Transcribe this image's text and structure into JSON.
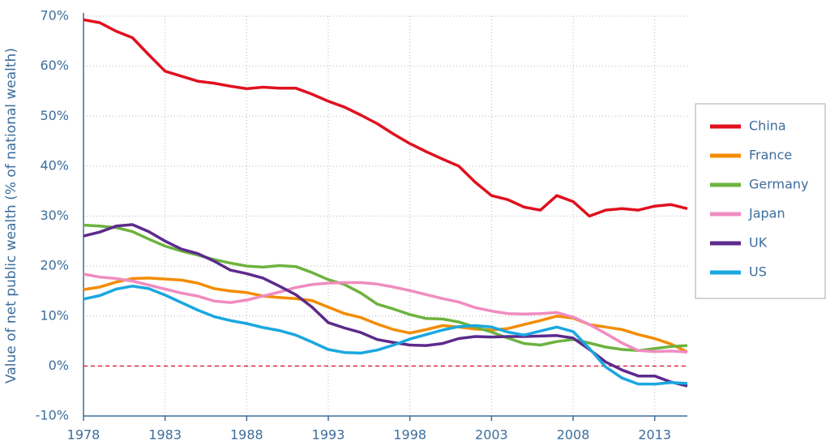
{
  "chart_data": {
    "type": "line",
    "y_label": "Value of net public wealth (% of national wealth)",
    "x": [
      1978,
      1979,
      1980,
      1981,
      1982,
      1983,
      1984,
      1985,
      1986,
      1987,
      1988,
      1989,
      1990,
      1991,
      1992,
      1993,
      1994,
      1995,
      1996,
      1997,
      1998,
      1999,
      2000,
      2001,
      2002,
      2003,
      2004,
      2005,
      2006,
      2007,
      2008,
      2009,
      2010,
      2011,
      2012,
      2013,
      2014,
      2015
    ],
    "xlim": [
      1978,
      2015
    ],
    "xticks": [
      1978,
      1983,
      1988,
      1993,
      1998,
      2003,
      2008,
      2013
    ],
    "ylim": [
      -10,
      70
    ],
    "yticks": [
      {
        "value": -10,
        "label": "-10%"
      },
      {
        "value": 0,
        "label": "0%"
      },
      {
        "value": 10,
        "label": "10%"
      },
      {
        "value": 20,
        "label": "20%"
      },
      {
        "value": 30,
        "label": "30%"
      },
      {
        "value": 40,
        "label": "40%"
      },
      {
        "value": 50,
        "label": "50%"
      },
      {
        "value": 60,
        "label": "60%"
      },
      {
        "value": 70,
        "label": "70%"
      }
    ],
    "grid": true,
    "reference_line": {
      "value": 0,
      "color": "#e0101f",
      "style": "dashed"
    },
    "legend": "right",
    "series": [
      {
        "name": "China",
        "color": "#e0101f",
        "values": [
          69.3,
          68.7,
          67,
          65.7,
          62.3,
          59,
          58,
          57,
          56.6,
          56,
          55.5,
          55.8,
          55.6,
          55.6,
          54.4,
          53,
          51.8,
          50.2,
          48.5,
          46.4,
          44.5,
          42.9,
          41.4,
          40,
          36.8,
          34.1,
          33.3,
          31.8,
          31.2,
          34.1,
          32.9,
          30,
          31.2,
          31.5,
          31.2,
          32,
          32.3,
          31.5
        ]
      },
      {
        "name": "France",
        "color": "#f28c00",
        "values": [
          15.3,
          15.8,
          16.8,
          17.5,
          17.6,
          17.4,
          17.2,
          16.6,
          15.5,
          15,
          14.7,
          14,
          13.7,
          13.5,
          13.1,
          11.8,
          10.5,
          9.7,
          8.4,
          7.3,
          6.6,
          7.3,
          8.1,
          7.8,
          7.4,
          7.2,
          7.5,
          8.3,
          9.1,
          10,
          9.6,
          8.3,
          7.8,
          7.3,
          6.3,
          5.5,
          4.4,
          2.8
        ]
      },
      {
        "name": "Germany",
        "color": "#6db33f",
        "values": [
          28.2,
          28,
          27.7,
          26.9,
          25.4,
          24,
          23,
          22.2,
          21.3,
          20.6,
          20,
          19.8,
          20.1,
          19.9,
          18.7,
          17.3,
          16.3,
          14.6,
          12.4,
          11.4,
          10.3,
          9.5,
          9.4,
          8.8,
          7.8,
          6.8,
          5.6,
          4.5,
          4.2,
          4.9,
          5.3,
          4.6,
          3.8,
          3.3,
          3.1,
          3.5,
          3.9,
          4.1
        ]
      },
      {
        "name": "Japan",
        "color": "#f08cbf",
        "values": [
          18.4,
          17.8,
          17.5,
          17,
          16.2,
          15.4,
          14.6,
          14,
          13,
          12.7,
          13.2,
          14,
          14.8,
          15.7,
          16.3,
          16.6,
          16.7,
          16.7,
          16.4,
          15.8,
          15.1,
          14.3,
          13.5,
          12.8,
          11.7,
          11,
          10.5,
          10.4,
          10.5,
          10.7,
          9.8,
          8.3,
          6.5,
          4.6,
          3.1,
          2.9,
          3,
          2.8
        ]
      },
      {
        "name": "UK",
        "color": "#5c2a8c",
        "values": [
          26,
          26.8,
          28,
          28.3,
          26.9,
          25,
          23.4,
          22.5,
          21,
          19.2,
          18.5,
          17.6,
          16,
          14.3,
          11.8,
          8.7,
          7.6,
          6.7,
          5.3,
          4.7,
          4.2,
          4.1,
          4.5,
          5.5,
          5.9,
          5.8,
          5.9,
          5.9,
          6,
          6.1,
          5.6,
          3.3,
          0.8,
          -0.8,
          -2,
          -2,
          -3.2,
          -4
        ]
      },
      {
        "name": "US",
        "color": "#1aa7e0",
        "values": [
          13.4,
          14.1,
          15.4,
          16,
          15.5,
          14.2,
          12.7,
          11.2,
          9.9,
          9.1,
          8.5,
          7.7,
          7.1,
          6.2,
          4.8,
          3.3,
          2.7,
          2.6,
          3.2,
          4.2,
          5.4,
          6.3,
          7.2,
          7.9,
          8.1,
          7.8,
          6.8,
          6.2,
          7,
          7.8,
          6.9,
          3.5,
          -0.2,
          -2.4,
          -3.6,
          -3.6,
          -3.3,
          -3.5
        ]
      }
    ]
  }
}
